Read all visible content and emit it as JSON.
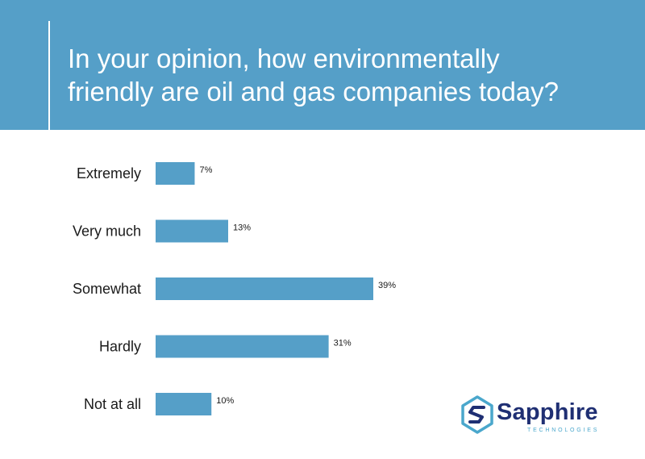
{
  "header": {
    "title_line1": "In your opinion, how environmentally",
    "title_line2": "friendly are oil and gas companies today?"
  },
  "colors": {
    "header_bg": "#559fc8",
    "bar": "#559fc8",
    "brand_dark": "#1f2f73",
    "brand_light": "#4aa7cc"
  },
  "chart_data": {
    "type": "bar",
    "orientation": "horizontal",
    "title": "In your opinion, how environmentally friendly are oil and gas companies today?",
    "categories": [
      "Extremely",
      "Very much",
      "Somewhat",
      "Hardly",
      "Not at all"
    ],
    "values": [
      7,
      13,
      39,
      31,
      10
    ],
    "value_labels": [
      "7%",
      "13%",
      "39%",
      "31%",
      "10%"
    ],
    "unit": "%",
    "xlim": [
      0,
      100
    ],
    "grid": false,
    "legend": "none"
  },
  "logo": {
    "name": "Sapphire",
    "subtitle": "TECHNOLOGIES",
    "icon": "sapphire-s-icon"
  }
}
